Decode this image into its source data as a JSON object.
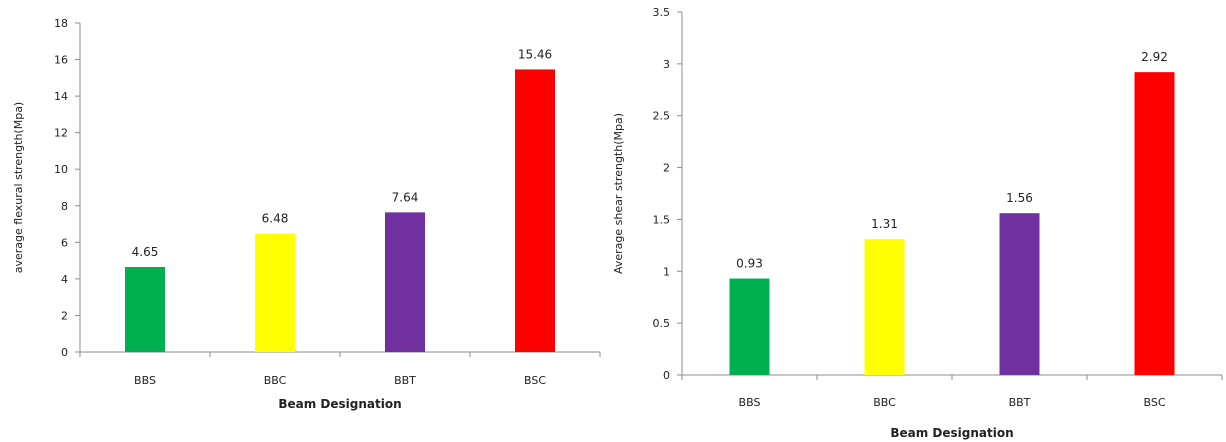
{
  "chart_data": [
    {
      "type": "bar",
      "title": "",
      "xlabel": "Beam Designation",
      "ylabel": "average flexural strength(Mpa)",
      "categories": [
        "BBS",
        "BBC",
        "BBT",
        "BSC"
      ],
      "values": [
        4.65,
        6.48,
        7.64,
        15.46
      ],
      "value_labels": [
        "4.65",
        "6.48",
        "7.64",
        "15.46"
      ],
      "colors": [
        "#00b050",
        "#ffff00",
        "#7030a0",
        "#ff0000"
      ],
      "ylim": [
        0,
        18
      ],
      "yticks": [
        0,
        2,
        4,
        6,
        8,
        10,
        12,
        14,
        16,
        18
      ],
      "ytick_labels": [
        "0",
        "2",
        "4",
        "6",
        "8",
        "10",
        "12",
        "14",
        "16",
        "18"
      ],
      "grid": false,
      "legend": "none"
    },
    {
      "type": "bar",
      "title": "",
      "xlabel": "Beam Designation",
      "ylabel": "Average shear strength(Mpa)",
      "categories": [
        "BBS",
        "BBC",
        "BBT",
        "BSC"
      ],
      "values": [
        0.93,
        1.31,
        1.56,
        2.92
      ],
      "value_labels": [
        "0.93",
        "1.31",
        "1.56",
        "2.92"
      ],
      "colors": [
        "#00b050",
        "#ffff00",
        "#7030a0",
        "#ff0000"
      ],
      "ylim": [
        0,
        3.5
      ],
      "yticks": [
        0,
        0.5,
        1,
        1.5,
        2,
        2.5,
        3,
        3.5
      ],
      "ytick_labels": [
        "0",
        "0.5",
        "1",
        "1.5",
        "2",
        "2.5",
        "3",
        "3.5"
      ],
      "grid": false,
      "legend": "none"
    }
  ]
}
